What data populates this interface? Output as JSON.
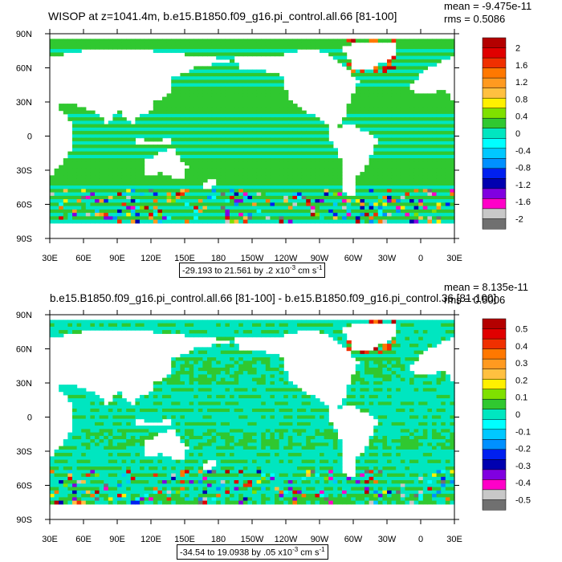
{
  "chart_data": [
    {
      "type": "heatmap",
      "title": "WISOP at z=1041.4m, b.e15.B1850.f09_g16.pi_control.all.66 [81-100]",
      "stats": {
        "mean": "mean = -9.475e-11",
        "rms": "rms = 0.5086"
      },
      "x_ticks": [
        "30E",
        "60E",
        "90E",
        "120E",
        "150E",
        "180",
        "150W",
        "120W",
        "90W",
        "60W",
        "30W",
        "0",
        "30E"
      ],
      "y_ticks": [
        "90N",
        "60N",
        "30N",
        "0",
        "30S",
        "60S",
        "90S"
      ],
      "colorbar_labels": [
        "2",
        "1.6",
        "1.2",
        "0.8",
        "0.4",
        "0",
        "-0.4",
        "-0.8",
        "-1.2",
        "-1.6",
        "-2"
      ],
      "range_text": "-29.193 to 21.561 by .2 x10",
      "units_exp": "-3",
      "units_tail": " cm s",
      "units_exp2": "-1",
      "palette": [
        "#b40000",
        "#e00000",
        "#f03000",
        "#ff7800",
        "#ff9a20",
        "#ffc040",
        "#fff000",
        "#7fe000",
        "#30c830",
        "#00e6c0",
        "#00ffff",
        "#00c8ff",
        "#0090ff",
        "#0020f0",
        "#0000b0",
        "#8000e0",
        "#ff00c8",
        "#c8c8c8",
        "#707070"
      ]
    },
    {
      "type": "heatmap",
      "title": "b.e15.B1850.f09_g16.pi_control.all.66 [81-100] - b.e15.B1850.f09_g16.pi_control.36 [81-100]",
      "stats": {
        "mean": "mean = 8.135e-11",
        "rms": "rms = 0.5006"
      },
      "x_ticks": [
        "30E",
        "60E",
        "90E",
        "120E",
        "150E",
        "180",
        "150W",
        "120W",
        "90W",
        "60W",
        "30W",
        "0",
        "30E"
      ],
      "y_ticks": [
        "90N",
        "60N",
        "30N",
        "0",
        "30S",
        "60S",
        "90S"
      ],
      "colorbar_labels": [
        "0.5",
        "0.4",
        "0.3",
        "0.2",
        "0.1",
        "0",
        "-0.1",
        "-0.2",
        "-0.3",
        "-0.4",
        "-0.5"
      ],
      "range_text": "-34.54 to 19.0938 by .05 x10",
      "units_exp": "-3",
      "units_tail": " cm s",
      "units_exp2": "-1",
      "palette": [
        "#b40000",
        "#e00000",
        "#f03000",
        "#ff7800",
        "#ff9a20",
        "#ffc040",
        "#fff000",
        "#7fe000",
        "#30c830",
        "#00e6c0",
        "#00ffff",
        "#00c8ff",
        "#0090ff",
        "#0020f0",
        "#0000b0",
        "#8000e0",
        "#ff00c8",
        "#c8c8c8",
        "#707070"
      ]
    }
  ]
}
